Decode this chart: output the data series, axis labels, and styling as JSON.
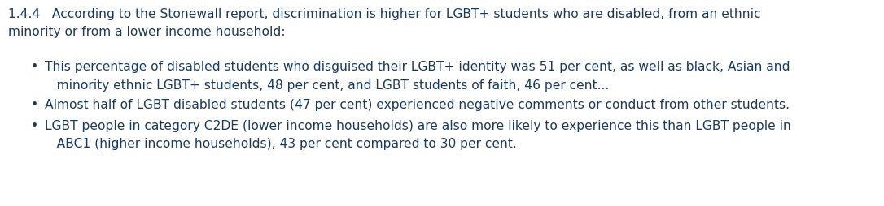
{
  "background_color": "#ffffff",
  "text_color": "#1a3a5c",
  "heading_line1": "1.4.4   According to the Stonewall report, discrimination is higher for LGBT+ students who are disabled, from an ethnic",
  "heading_line2": "minority or from a lower income household:",
  "bullet1_line1": "This percentage of disabled students who disguised their LGBT+ identity was 51 per cent, as well as black, Asian and",
  "bullet1_line2": "   minority ethnic LGBT+ students, 48 per cent, and LGBT students of faith, 46 per cent...",
  "bullet2": "Almost half of LGBT disabled students (47 per cent) experienced negative comments or conduct from other students.",
  "bullet3_line1": "LGBT people in category C2DE (lower income households) are also more likely to experience this than LGBT people in",
  "bullet3_line2": "   ABC1 (higher income households), 43 per cent compared to 30 per cent.",
  "fontsize": 11.2,
  "font_family": "DejaVu Sans",
  "bullet_char": "•",
  "figwidth": 10.86,
  "figheight": 2.55,
  "dpi": 100
}
